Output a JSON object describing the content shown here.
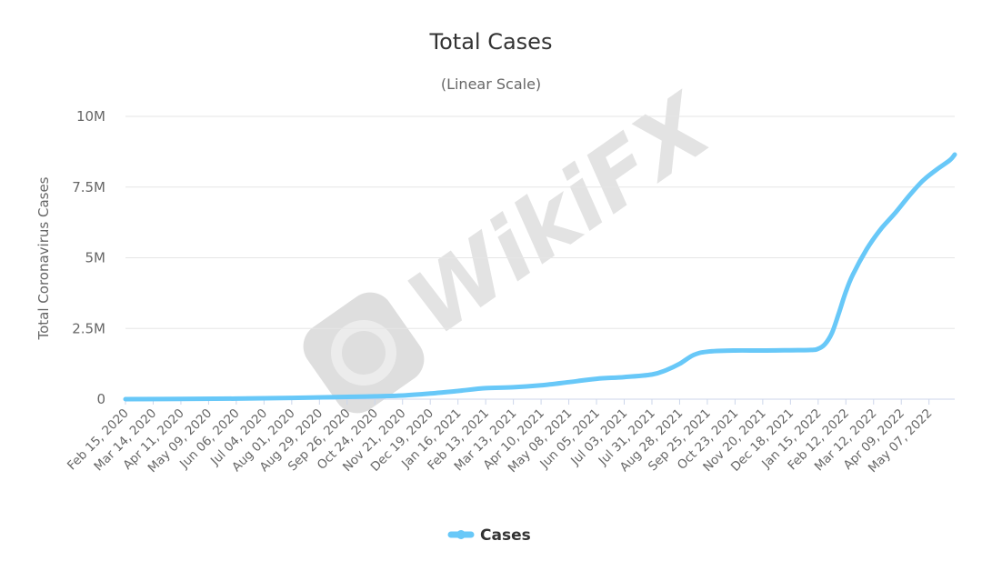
{
  "chart_data": {
    "type": "line",
    "title": "Total Cases",
    "subtitle": "(Linear Scale)",
    "xlabel": "",
    "ylabel": "Total Coronavirus Cases",
    "ylim": [
      0,
      10000000
    ],
    "yticks": [
      {
        "value": 0,
        "label": "0"
      },
      {
        "value": 2500000,
        "label": "2.5M"
      },
      {
        "value": 5000000,
        "label": "5M"
      },
      {
        "value": 7500000,
        "label": "7.5M"
      },
      {
        "value": 10000000,
        "label": "10M"
      }
    ],
    "x_range": [
      "2020-02-15",
      "2022-06-02"
    ],
    "xtick_labels": [
      {
        "date": "2020-02-15",
        "label": "Feb 15, 2020"
      },
      {
        "date": "2020-03-14",
        "label": "Mar 14, 2020"
      },
      {
        "date": "2020-04-11",
        "label": "Apr 11, 2020"
      },
      {
        "date": "2020-05-09",
        "label": "May 09, 2020"
      },
      {
        "date": "2020-06-06",
        "label": "Jun 06, 2020"
      },
      {
        "date": "2020-07-04",
        "label": "Jul 04, 2020"
      },
      {
        "date": "2020-08-01",
        "label": "Aug 01, 2020"
      },
      {
        "date": "2020-08-29",
        "label": "Aug 29, 2020"
      },
      {
        "date": "2020-09-26",
        "label": "Sep 26, 2020"
      },
      {
        "date": "2020-10-24",
        "label": "Oct 24, 2020"
      },
      {
        "date": "2020-11-21",
        "label": "Nov 21, 2020"
      },
      {
        "date": "2020-12-19",
        "label": "Dec 19, 2020"
      },
      {
        "date": "2021-01-16",
        "label": "Jan 16, 2021"
      },
      {
        "date": "2021-02-13",
        "label": "Feb 13, 2021"
      },
      {
        "date": "2021-03-13",
        "label": "Mar 13, 2021"
      },
      {
        "date": "2021-04-10",
        "label": "Apr 10, 2021"
      },
      {
        "date": "2021-05-08",
        "label": "May 08, 2021"
      },
      {
        "date": "2021-06-05",
        "label": "Jun 05, 2021"
      },
      {
        "date": "2021-07-03",
        "label": "Jul 03, 2021"
      },
      {
        "date": "2021-07-31",
        "label": "Jul 31, 2021"
      },
      {
        "date": "2021-08-28",
        "label": "Aug 28, 2021"
      },
      {
        "date": "2021-09-25",
        "label": "Sep 25, 2021"
      },
      {
        "date": "2021-10-23",
        "label": "Oct 23, 2021"
      },
      {
        "date": "2021-11-20",
        "label": "Nov 20, 2021"
      },
      {
        "date": "2021-12-18",
        "label": "Dec 18, 2021"
      },
      {
        "date": "2022-01-15",
        "label": "Jan 15, 2022"
      },
      {
        "date": "2022-02-12",
        "label": "Feb 12, 2022"
      },
      {
        "date": "2022-03-12",
        "label": "Mar 12, 2022"
      },
      {
        "date": "2022-04-09",
        "label": "Apr 09, 2022"
      },
      {
        "date": "2022-05-07",
        "label": "May 07, 2022"
      }
    ],
    "grid": true,
    "legend": "bottom-center",
    "series": [
      {
        "name": "Cases",
        "color": "#68c8f8",
        "points": [
          {
            "x": "2020-02-15",
            "y": 0
          },
          {
            "x": "2020-04-11",
            "y": 5000
          },
          {
            "x": "2020-06-06",
            "y": 20000
          },
          {
            "x": "2020-08-01",
            "y": 45000
          },
          {
            "x": "2020-09-26",
            "y": 80000
          },
          {
            "x": "2020-10-24",
            "y": 100000
          },
          {
            "x": "2020-11-21",
            "y": 130000
          },
          {
            "x": "2020-12-19",
            "y": 200000
          },
          {
            "x": "2021-01-16",
            "y": 290000
          },
          {
            "x": "2021-02-13",
            "y": 390000
          },
          {
            "x": "2021-03-13",
            "y": 420000
          },
          {
            "x": "2021-04-10",
            "y": 490000
          },
          {
            "x": "2021-05-08",
            "y": 600000
          },
          {
            "x": "2021-06-05",
            "y": 720000
          },
          {
            "x": "2021-07-03",
            "y": 780000
          },
          {
            "x": "2021-07-31",
            "y": 870000
          },
          {
            "x": "2021-08-14",
            "y": 1020000
          },
          {
            "x": "2021-08-28",
            "y": 1250000
          },
          {
            "x": "2021-09-11",
            "y": 1560000
          },
          {
            "x": "2021-09-25",
            "y": 1680000
          },
          {
            "x": "2021-10-23",
            "y": 1720000
          },
          {
            "x": "2021-11-20",
            "y": 1720000
          },
          {
            "x": "2021-12-18",
            "y": 1730000
          },
          {
            "x": "2022-01-08",
            "y": 1740000
          },
          {
            "x": "2022-01-15",
            "y": 1780000
          },
          {
            "x": "2022-01-22",
            "y": 1950000
          },
          {
            "x": "2022-01-29",
            "y": 2350000
          },
          {
            "x": "2022-02-05",
            "y": 3050000
          },
          {
            "x": "2022-02-12",
            "y": 3800000
          },
          {
            "x": "2022-02-19",
            "y": 4400000
          },
          {
            "x": "2022-03-05",
            "y": 5300000
          },
          {
            "x": "2022-03-19",
            "y": 6000000
          },
          {
            "x": "2022-04-02",
            "y": 6550000
          },
          {
            "x": "2022-04-16",
            "y": 7150000
          },
          {
            "x": "2022-04-30",
            "y": 7700000
          },
          {
            "x": "2022-05-14",
            "y": 8100000
          },
          {
            "x": "2022-05-28",
            "y": 8450000
          },
          {
            "x": "2022-06-02",
            "y": 8650000
          }
        ]
      }
    ]
  },
  "watermark": {
    "text": "WikiFX"
  }
}
